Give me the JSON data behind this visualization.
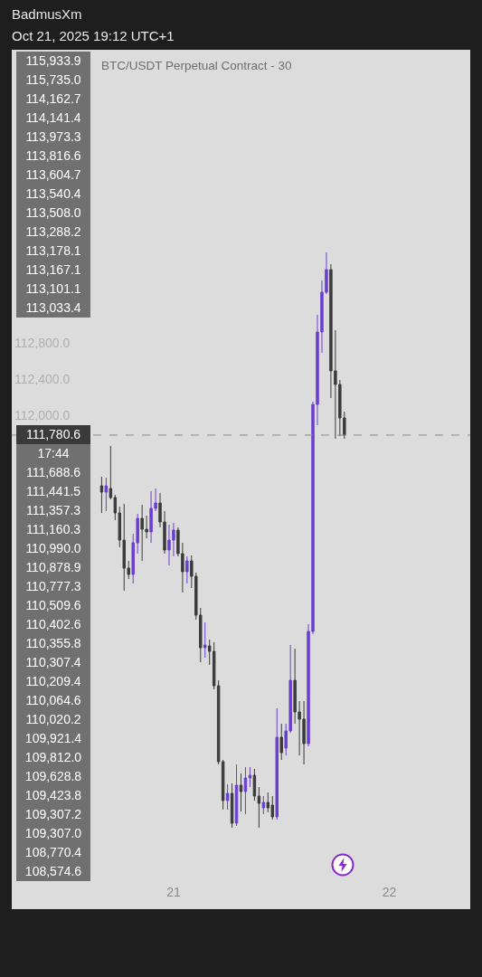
{
  "chart_data": {
    "type": "candlestick",
    "title": "BTC/USDT Perpetual Contract - 30",
    "subtitle": "BadmusXm",
    "annotations": [
      "Oct 21, 2025 19:12 UTC+1",
      "115,933.9",
      "115,735.0",
      "114,162.7",
      "114,141.4",
      "113,973.3",
      "113,816.6",
      "113,604.7",
      "113,540.4",
      "113,508.0",
      "113,288.2",
      "113,178.1",
      "113,167.1",
      "113,101.1",
      "113,033.4",
      "17:44",
      "111,688.6",
      "111,441.5",
      "111,357.3",
      "111,160.3",
      "110,990.0",
      "110,878.9",
      "110,777.3",
      "110,509.6",
      "110,402.6",
      "110,355.8",
      "110,307.4",
      "110,209.4",
      "110,064.6",
      "110,020.2",
      "109,921.4",
      "109,812.0",
      "109,628.8",
      "109,423.8",
      "109,307.2",
      "109,307.0",
      "108,770.4",
      "108,574.6"
    ],
    "x": [
      "2025-10-20T16:00",
      "2025-10-20T16:30",
      "2025-10-20T17:00",
      "2025-10-20T17:30",
      "2025-10-20T18:00",
      "2025-10-20T18:30",
      "2025-10-20T19:00",
      "2025-10-20T19:30",
      "2025-10-20T20:00",
      "2025-10-20T20:30",
      "2025-10-20T21:00",
      "2025-10-20T21:30",
      "2025-10-20T22:00",
      "2025-10-20T22:30",
      "2025-10-20T23:00",
      "2025-10-20T23:30",
      "2025-10-21T00:00",
      "2025-10-21T00:30",
      "2025-10-21T01:00",
      "2025-10-21T01:30",
      "2025-10-21T02:00",
      "2025-10-21T02:30",
      "2025-10-21T03:00",
      "2025-10-21T03:30",
      "2025-10-21T04:00",
      "2025-10-21T04:30",
      "2025-10-21T05:00",
      "2025-10-21T05:30",
      "2025-10-21T06:00",
      "2025-10-21T06:30",
      "2025-10-21T07:00",
      "2025-10-21T07:30",
      "2025-10-21T08:00",
      "2025-10-21T08:30",
      "2025-10-21T09:00",
      "2025-10-21T09:30",
      "2025-10-21T10:00",
      "2025-10-21T10:30",
      "2025-10-21T11:00",
      "2025-10-21T11:30",
      "2025-10-21T12:00",
      "2025-10-21T12:30",
      "2025-10-21T13:00",
      "2025-10-21T13:30",
      "2025-10-21T14:00",
      "2025-10-21T14:30",
      "2025-10-21T15:00",
      "2025-10-21T15:30",
      "2025-10-21T16:00",
      "2025-10-21T16:30",
      "2025-10-21T17:00",
      "2025-10-21T17:30",
      "2025-10-21T18:00",
      "2025-10-21T18:30",
      "2025-10-21T19:00"
    ],
    "ohlc": [
      [
        111220,
        111320,
        110920,
        111150
      ],
      [
        111150,
        111310,
        110940,
        111220
      ],
      [
        111190,
        111660,
        111070,
        111090
      ],
      [
        111090,
        111120,
        110840,
        110920
      ],
      [
        110920,
        110990,
        110540,
        110620
      ],
      [
        110620,
        111020,
        110060,
        110310
      ],
      [
        110310,
        110390,
        110190,
        110240
      ],
      [
        110240,
        110690,
        110140,
        110590
      ],
      [
        110590,
        110910,
        110470,
        110860
      ],
      [
        110860,
        111010,
        110390,
        110740
      ],
      [
        110740,
        110890,
        110640,
        110710
      ],
      [
        110710,
        111160,
        110590,
        110970
      ],
      [
        110970,
        111190,
        110940,
        111030
      ],
      [
        111030,
        111140,
        110760,
        110820
      ],
      [
        110820,
        110940,
        110470,
        110510
      ],
      [
        110510,
        110790,
        110340,
        110620
      ],
      [
        110620,
        110810,
        110440,
        110730
      ],
      [
        110730,
        110760,
        110440,
        110470
      ],
      [
        110470,
        110590,
        110040,
        110270
      ],
      [
        110270,
        110440,
        110140,
        110390
      ],
      [
        110390,
        110450,
        110090,
        110220
      ],
      [
        110220,
        110260,
        109740,
        109790
      ],
      [
        109790,
        109870,
        109270,
        109430
      ],
      [
        109430,
        109710,
        109320,
        109460
      ],
      [
        109450,
        109520,
        109240,
        109390
      ],
      [
        109390,
        109490,
        108970,
        109010
      ],
      [
        109010,
        109070,
        108140,
        108170
      ],
      [
        108170,
        108190,
        107640,
        107740
      ],
      [
        107740,
        107920,
        107640,
        107820
      ],
      [
        107820,
        107930,
        107440,
        107490
      ],
      [
        107490,
        108140,
        107460,
        107910
      ],
      [
        107910,
        108040,
        107620,
        107840
      ],
      [
        107840,
        108110,
        107590,
        107990
      ],
      [
        107990,
        108110,
        107890,
        108020
      ],
      [
        108020,
        108090,
        107740,
        107790
      ],
      [
        107790,
        107890,
        107440,
        107710
      ],
      [
        107660,
        107790,
        107590,
        107720
      ],
      [
        107720,
        107830,
        107610,
        107660
      ],
      [
        107690,
        107790,
        107530,
        107560
      ],
      [
        107560,
        108760,
        107530,
        108440
      ],
      [
        108440,
        108590,
        108190,
        108270
      ],
      [
        108320,
        108590,
        108240,
        108510
      ],
      [
        108510,
        109460,
        108490,
        109070
      ],
      [
        109070,
        109420,
        108590,
        108720
      ],
      [
        108720,
        108840,
        108240,
        108640
      ],
      [
        108640,
        108840,
        108140,
        108370
      ],
      [
        108370,
        109690,
        108340,
        109610
      ],
      [
        109610,
        112150,
        109580,
        112120
      ],
      [
        112120,
        113110,
        111890,
        112920
      ],
      [
        112920,
        113490,
        112690,
        113360
      ],
      [
        113360,
        113800,
        113340,
        113610
      ],
      [
        113610,
        113670,
        112190,
        112490
      ],
      [
        112490,
        112940,
        111740,
        112340
      ],
      [
        112340,
        112390,
        111770,
        111970
      ],
      [
        111970,
        112040,
        111740,
        111780
      ]
    ],
    "xlim": [
      "2025-10-20T06:00",
      "2025-10-22T09:00"
    ],
    "xticks": [
      {
        "value": "2025-10-21",
        "label": "21"
      },
      {
        "value": "2025-10-22",
        "label": "22"
      }
    ],
    "ylim": [
      106540,
      116040
    ],
    "yticks": [
      {
        "value": 112000,
        "label": "112,000.0"
      },
      {
        "value": 112400,
        "label": "112,400.0"
      },
      {
        "value": 112800,
        "label": "112,800.0"
      }
    ],
    "ref_lines": [
      {
        "axis": "y",
        "value": 111780.6,
        "label": "111,780.6",
        "color": "#8a8a8a",
        "line_style": "dashed"
      }
    ]
  }
}
